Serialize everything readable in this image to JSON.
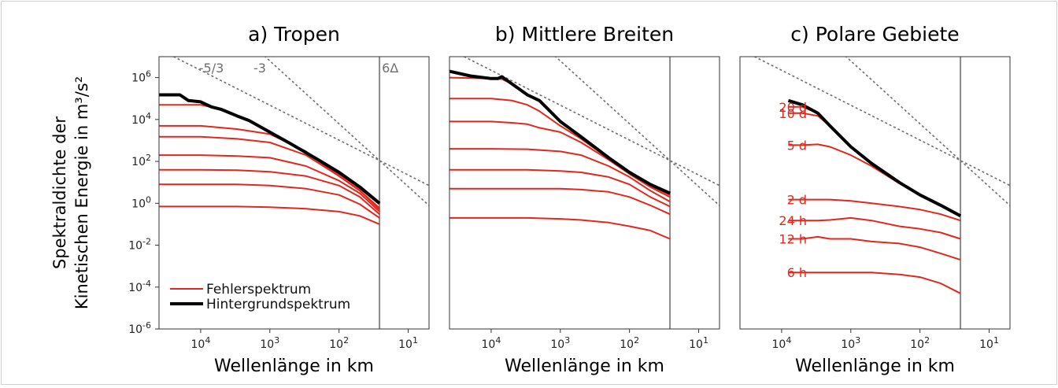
{
  "figure": {
    "ylabel_line1": "Spektraldichte der",
    "ylabel_line2": "Kinetischen Energie in m³/s²",
    "xlabel": "Wellenlänge in km",
    "legend": {
      "error": "Fehlerspektrum",
      "background": "Hintergrundspektrum"
    }
  },
  "chart_data": [
    {
      "type": "line",
      "title": "a) Tropen",
      "xlabel": "Wellenlänge in km",
      "ylabel": "Spektraldichte der Kinetischen Energie in m³/s²",
      "x_scale": "log",
      "x_reversed": true,
      "y_scale": "log",
      "xlim": [
        40000,
        5
      ],
      "ylim": [
        1e-06,
        10000000.0
      ],
      "x_ticks": [
        "10^4",
        "10^3",
        "10^2",
        "10^1"
      ],
      "y_ticks": [
        "10^-6",
        "10^-4",
        "10^-2",
        "10^0",
        "10^2",
        "10^4",
        "10^6"
      ],
      "grid": false,
      "legend_position": "lower-left",
      "reference_lines": [
        {
          "label": "-5/3",
          "slope": -1.6667
        },
        {
          "label": "-3",
          "slope": -3
        },
        {
          "label": "6Δ",
          "wavelength_km": 26
        }
      ],
      "background": {
        "x": [
          40000,
          30000,
          20000,
          15000,
          10000,
          7000,
          5000,
          3000,
          2000,
          1000,
          500,
          200,
          100,
          50,
          26
        ],
        "y": [
          150000,
          150000,
          150000,
          80000,
          70000,
          40000,
          30000,
          15000,
          9000,
          2500,
          700,
          120,
          30,
          6,
          1
        ]
      },
      "series": [
        {
          "x": [
            40000,
            10000,
            5000,
            3000,
            2000,
            1000,
            300,
            100,
            50,
            26
          ],
          "y": [
            50000,
            50000,
            30000,
            15000,
            9000,
            2500,
            250,
            25,
            5,
            0.9
          ]
        },
        {
          "x": [
            40000,
            10000,
            3000,
            1000,
            300,
            100,
            50,
            26
          ],
          "y": [
            5000,
            5000,
            3500,
            2000,
            300,
            20,
            4,
            0.6
          ]
        },
        {
          "x": [
            40000,
            10000,
            3000,
            1000,
            300,
            100,
            50,
            26
          ],
          "y": [
            1500,
            1500,
            1200,
            800,
            200,
            20,
            4,
            0.5
          ]
        },
        {
          "x": [
            40000,
            10000,
            3000,
            1000,
            300,
            100,
            50,
            26
          ],
          "y": [
            200,
            200,
            180,
            150,
            60,
            12,
            3,
            0.4
          ]
        },
        {
          "x": [
            40000,
            10000,
            3000,
            1000,
            300,
            100,
            50,
            26
          ],
          "y": [
            40,
            40,
            38,
            32,
            20,
            7,
            2,
            0.3
          ]
        },
        {
          "x": [
            40000,
            10000,
            3000,
            1000,
            300,
            100,
            50,
            26
          ],
          "y": [
            8,
            8,
            8,
            7,
            5,
            2.5,
            0.9,
            0.2
          ]
        },
        {
          "x": [
            40000,
            10000,
            3000,
            1000,
            300,
            100,
            50,
            26
          ],
          "y": [
            0.7,
            0.7,
            0.7,
            0.65,
            0.55,
            0.4,
            0.25,
            0.1
          ]
        }
      ]
    },
    {
      "type": "line",
      "title": "b) Mittlere Breiten",
      "xlabel": "Wellenlänge in km",
      "x_scale": "log",
      "x_reversed": true,
      "y_scale": "log",
      "xlim": [
        40000,
        5
      ],
      "ylim": [
        1e-06,
        10000000.0
      ],
      "x_ticks": [
        "10^4",
        "10^3",
        "10^2",
        "10^1"
      ],
      "grid": false,
      "reference_lines": [
        {
          "slope": -1.6667
        },
        {
          "slope": -3
        },
        {
          "wavelength_km": 26
        }
      ],
      "background": {
        "x": [
          40000,
          20000,
          10000,
          8000,
          7000,
          5000,
          3000,
          2000,
          1000,
          500,
          200,
          100,
          50,
          26
        ],
        "y": [
          2000000,
          1200000,
          900000,
          900000,
          1100000,
          500000,
          150000,
          80000,
          8000,
          1500,
          150,
          30,
          8,
          3
        ]
      },
      "series": [
        {
          "x": [
            40000,
            10000,
            7000,
            5000,
            3000,
            2000,
            1000,
            500,
            200,
            100,
            50,
            26
          ],
          "y": [
            1000000,
            900000,
            850000,
            500000,
            150000,
            80000,
            8000,
            1500,
            150,
            30,
            8,
            3
          ]
        },
        {
          "x": [
            40000,
            10000,
            5000,
            3000,
            2000,
            1000,
            500,
            200,
            100,
            50,
            26
          ],
          "y": [
            100000,
            100000,
            80000,
            50000,
            25000,
            5000,
            1200,
            140,
            28,
            7,
            2.5
          ]
        },
        {
          "x": [
            40000,
            10000,
            5000,
            3000,
            2000,
            1000,
            500,
            200,
            100,
            50,
            26
          ],
          "y": [
            8000,
            8000,
            7000,
            6000,
            4000,
            2500,
            800,
            120,
            25,
            6,
            2
          ]
        },
        {
          "x": [
            40000,
            10000,
            3000,
            1000,
            500,
            200,
            100,
            50,
            26
          ],
          "y": [
            400,
            400,
            380,
            300,
            200,
            60,
            18,
            4,
            1.2
          ]
        },
        {
          "x": [
            40000,
            10000,
            3000,
            1000,
            500,
            200,
            100,
            50,
            26
          ],
          "y": [
            40,
            40,
            40,
            35,
            30,
            18,
            8,
            2,
            0.7
          ]
        },
        {
          "x": [
            40000,
            10000,
            3000,
            1000,
            500,
            200,
            100,
            50,
            26
          ],
          "y": [
            5,
            5,
            5,
            5,
            4.5,
            3.5,
            2,
            0.8,
            0.3
          ]
        },
        {
          "x": [
            40000,
            10000,
            3000,
            1000,
            500,
            200,
            100,
            50,
            26
          ],
          "y": [
            0.2,
            0.2,
            0.2,
            0.18,
            0.16,
            0.12,
            0.08,
            0.05,
            0.02
          ]
        }
      ]
    },
    {
      "type": "line",
      "title": "c) Polare Gebiete",
      "xlabel": "Wellenlänge in km",
      "x_scale": "log",
      "x_reversed": true,
      "y_scale": "log",
      "xlim": [
        40000,
        5
      ],
      "ylim": [
        1e-06,
        10000000.0
      ],
      "x_ticks": [
        "10^4",
        "10^3",
        "10^2",
        "10^1"
      ],
      "grid": false,
      "reference_lines": [
        {
          "slope": -1.6667
        },
        {
          "slope": -3
        },
        {
          "wavelength_km": 26
        }
      ],
      "background": {
        "x": [
          8000,
          5000,
          3000,
          2000,
          1000,
          500,
          200,
          100,
          50,
          26
        ],
        "y": [
          80000,
          50000,
          20000,
          5000,
          500,
          80,
          10,
          2.5,
          0.8,
          0.25
        ]
      },
      "series": [
        {
          "name": "20 d",
          "x": [
            8000,
            5000,
            3000,
            2000,
            1000,
            500,
            200,
            100,
            50,
            26
          ],
          "y": [
            40000,
            40000,
            20000,
            5000,
            500,
            80,
            10,
            2.5,
            0.8,
            0.25
          ]
        },
        {
          "name": "10 d",
          "x": [
            8000,
            5000,
            3000,
            2000,
            1000,
            500,
            200,
            100,
            50,
            26
          ],
          "y": [
            20000,
            20000,
            15000,
            5000,
            500,
            80,
            10,
            2.5,
            0.8,
            0.25
          ]
        },
        {
          "name": "5 d",
          "x": [
            8000,
            5000,
            3000,
            2000,
            1000,
            500,
            200,
            100,
            50,
            26
          ],
          "y": [
            600,
            600,
            650,
            500,
            200,
            60,
            9,
            2.5,
            0.8,
            0.25
          ]
        },
        {
          "name": "2 d",
          "x": [
            8000,
            5000,
            3000,
            2000,
            1000,
            500,
            200,
            100,
            50,
            26
          ],
          "y": [
            1.5,
            1.5,
            1.5,
            1.5,
            1.3,
            1,
            0.7,
            0.5,
            0.3,
            0.15
          ]
        },
        {
          "name": "24 h",
          "x": [
            8000,
            5000,
            3000,
            2000,
            1000,
            500,
            200,
            100,
            50,
            26
          ],
          "y": [
            0.15,
            0.15,
            0.15,
            0.16,
            0.2,
            0.15,
            0.08,
            0.06,
            0.04,
            0.02
          ]
        },
        {
          "name": "12 h",
          "x": [
            8000,
            5000,
            3000,
            2000,
            1000,
            500,
            200,
            100,
            50,
            26
          ],
          "y": [
            0.02,
            0.02,
            0.025,
            0.02,
            0.02,
            0.015,
            0.012,
            0.008,
            0.004,
            0.002
          ]
        },
        {
          "name": "6 h",
          "x": [
            8000,
            5000,
            3000,
            2000,
            1000,
            500,
            200,
            100,
            50,
            26
          ],
          "y": [
            0.0005,
            0.0005,
            0.0005,
            0.0005,
            0.0005,
            0.0005,
            0.0004,
            0.0003,
            0.00015,
            5e-05
          ]
        }
      ]
    }
  ],
  "colors": {
    "error": "#e0281e",
    "background": "#000000",
    "reference": "#6e6e6e",
    "vline": "#8a8a8a"
  }
}
